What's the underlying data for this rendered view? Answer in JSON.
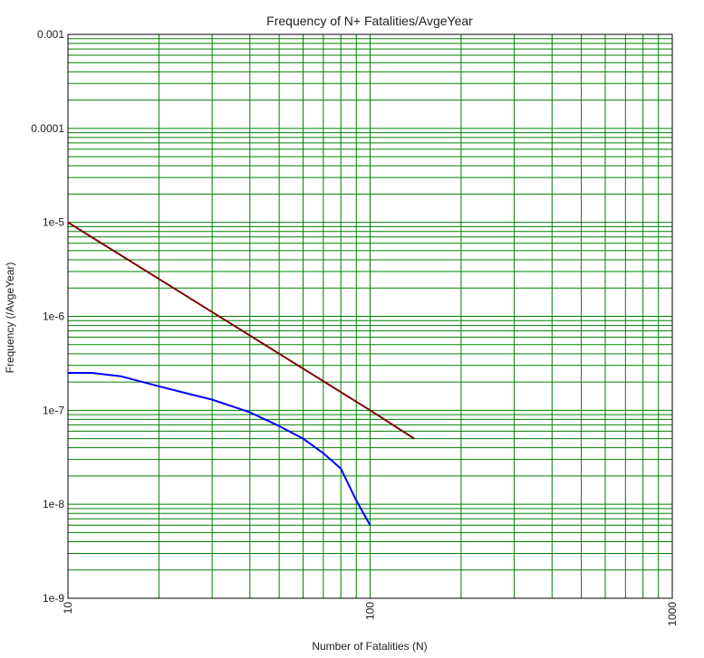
{
  "chart_data": {
    "type": "line",
    "title": "Frequency of N+ Fatalities/AvgeYear",
    "xlabel": "Number of Fatalities (N)",
    "ylabel": "Frequency (/AvgeYear)",
    "x_scale": "log",
    "y_scale": "log",
    "xlim": [
      10,
      1000
    ],
    "ylim": [
      1e-09,
      0.001
    ],
    "x_ticks": [
      {
        "value": 10,
        "label": "10"
      },
      {
        "value": 100,
        "label": "100"
      },
      {
        "value": 1000,
        "label": "1000"
      }
    ],
    "y_ticks": [
      {
        "value": 0.001,
        "label": "0.001"
      },
      {
        "value": 0.0001,
        "label": "0.0001"
      },
      {
        "value": 1e-05,
        "label": "1e-5"
      },
      {
        "value": 1e-06,
        "label": "1e-6"
      },
      {
        "value": 1e-07,
        "label": "1e-7"
      },
      {
        "value": 1e-08,
        "label": "1e-8"
      },
      {
        "value": 1e-09,
        "label": "1e-9"
      }
    ],
    "grid": true,
    "legend": "none",
    "colors": {
      "background": "#ffffff",
      "grid": "#008000",
      "frame": "#000000"
    },
    "series": [
      {
        "color": "#800000",
        "points": [
          {
            "x": 10,
            "y": 1e-05
          },
          {
            "x": 20,
            "y": 2.5e-06
          },
          {
            "x": 50,
            "y": 4e-07
          },
          {
            "x": 100,
            "y": 1e-07
          },
          {
            "x": 140,
            "y": 5e-08
          }
        ]
      },
      {
        "color": "#0000ff",
        "points": [
          {
            "x": 10,
            "y": 2.5e-07
          },
          {
            "x": 12,
            "y": 2.5e-07
          },
          {
            "x": 15,
            "y": 2.3e-07
          },
          {
            "x": 20,
            "y": 1.8e-07
          },
          {
            "x": 25,
            "y": 1.5e-07
          },
          {
            "x": 30,
            "y": 1.3e-07
          },
          {
            "x": 40,
            "y": 9.5e-08
          },
          {
            "x": 50,
            "y": 6.8e-08
          },
          {
            "x": 60,
            "y": 5e-08
          },
          {
            "x": 70,
            "y": 3.5e-08
          },
          {
            "x": 80,
            "y": 2.4e-08
          },
          {
            "x": 90,
            "y": 1.1e-08
          },
          {
            "x": 100,
            "y": 6e-09
          }
        ]
      }
    ]
  }
}
